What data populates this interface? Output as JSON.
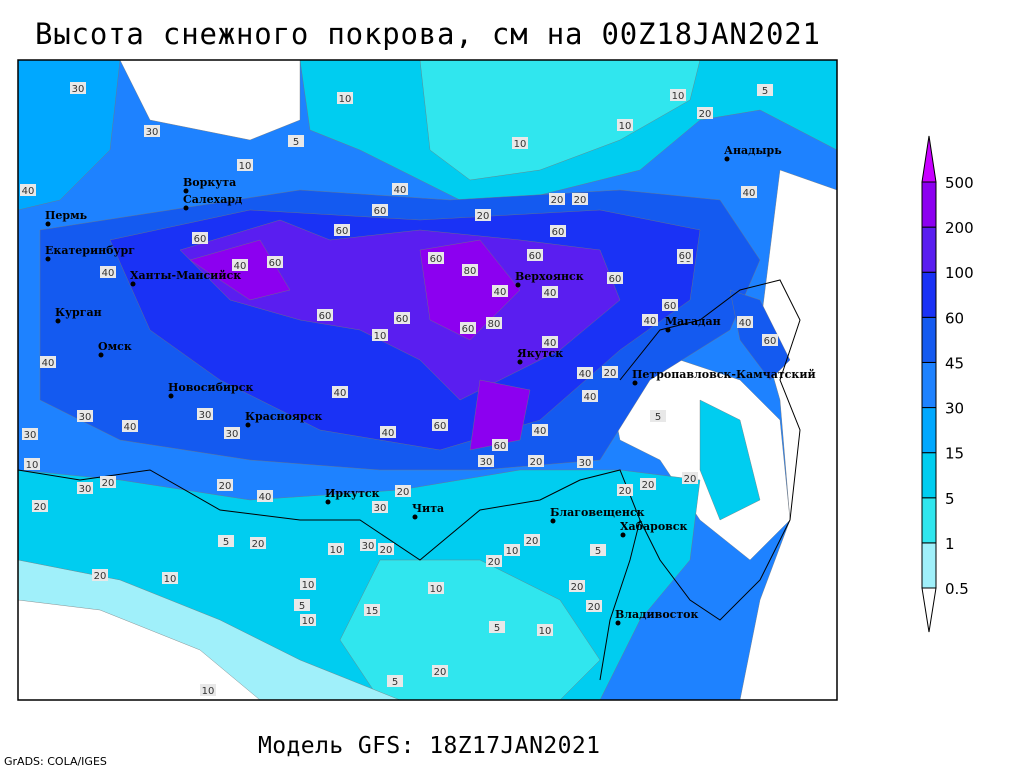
{
  "title": "Высота снежного покрова, см на 00Z18JAN2021",
  "subtitle": "Модель GFS: 18Z17JAN2021",
  "credit": "GrADS: COLA/IGES",
  "legend": {
    "levels": [
      0.5,
      1,
      5,
      15,
      30,
      45,
      60,
      100,
      200,
      500
    ],
    "colors": [
      "#ffffff",
      "#a0f0fa",
      "#30e6ee",
      "#00cdf0",
      "#00a8ff",
      "#1e82ff",
      "#145af0",
      "#1a32f5",
      "#5a1ef0",
      "#8c00f0",
      "#c800ff"
    ]
  },
  "cities": [
    "Воркута",
    "Салехард",
    "Пермь",
    "Екатеринбург",
    "Ханты-Мансийск",
    "Курган",
    "Омск",
    "Новосибирск",
    "Красноярск",
    "Иркутск",
    "Чита",
    "Благовещенск",
    "Хабаровск",
    "Владивосток",
    "Якутск",
    "Верхоянск",
    "Магадан",
    "Петропавловск-Камчатский",
    "Анадырь"
  ],
  "contour_labels": [
    30,
    30,
    40,
    40,
    40,
    30,
    30,
    10,
    60,
    40,
    60,
    60,
    60,
    60,
    60,
    10,
    60,
    80,
    40,
    60,
    80,
    60,
    60,
    40,
    60,
    40,
    60,
    60,
    40,
    40,
    20,
    40,
    5,
    60,
    60,
    40,
    30,
    20,
    30,
    40,
    40,
    30,
    30,
    40,
    30,
    20,
    20,
    20,
    40,
    20,
    30,
    10,
    30,
    20,
    5,
    20,
    10,
    5,
    10,
    15,
    10,
    20,
    10,
    20,
    20,
    20,
    10,
    5,
    20,
    5,
    20,
    10,
    10,
    20,
    20,
    20,
    5,
    10,
    10,
    10,
    10,
    5,
    20,
    20,
    20,
    20,
    40,
    5,
    10,
    40,
    60,
    60,
    40
  ]
}
